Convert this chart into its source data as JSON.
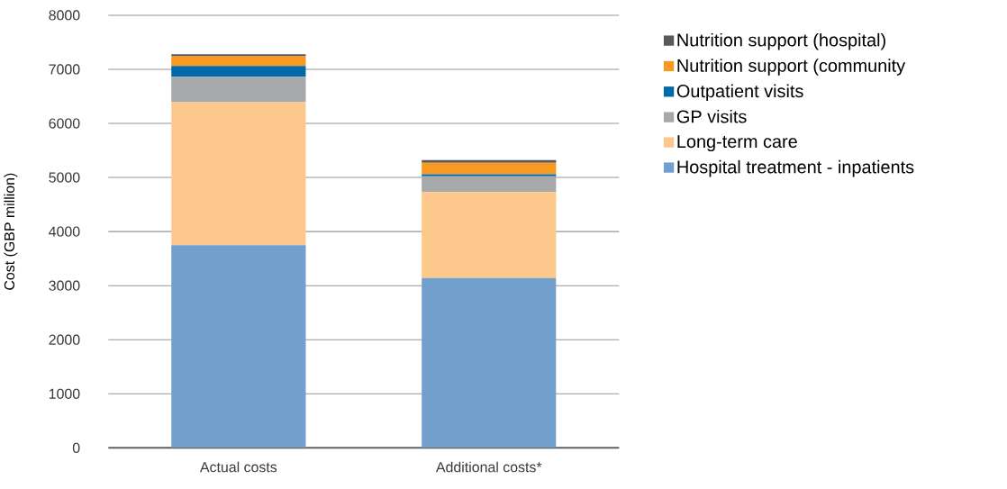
{
  "chart_data": {
    "type": "bar",
    "stacked": true,
    "ylabel": "Cost (GBP million)",
    "categories": [
      "Actual costs",
      "Additional costs*"
    ],
    "series": [
      {
        "name": "Hospital treatment - inpatients",
        "color": "#71a0cc",
        "values": [
          3750,
          3140
        ]
      },
      {
        "name": "Long-term care",
        "color": "#fdc88b",
        "values": [
          2640,
          1590
        ]
      },
      {
        "name": "GP visits",
        "color": "#a7a8ab",
        "values": [
          470,
          290
        ]
      },
      {
        "name": "Outpatient visits",
        "color": "#0069aa",
        "values": [
          200,
          40
        ]
      },
      {
        "name": "Nutrition support (community",
        "color": "#f89a22",
        "values": [
          180,
          210
        ]
      },
      {
        "name": "Nutrition support (hospital)",
        "color": "#58595b",
        "values": [
          40,
          50
        ]
      }
    ],
    "ylim": [
      0,
      8000
    ],
    "yticks": [
      0,
      1000,
      2000,
      3000,
      4000,
      5000,
      6000,
      7000,
      8000
    ],
    "grid": "y",
    "legend": "right"
  }
}
